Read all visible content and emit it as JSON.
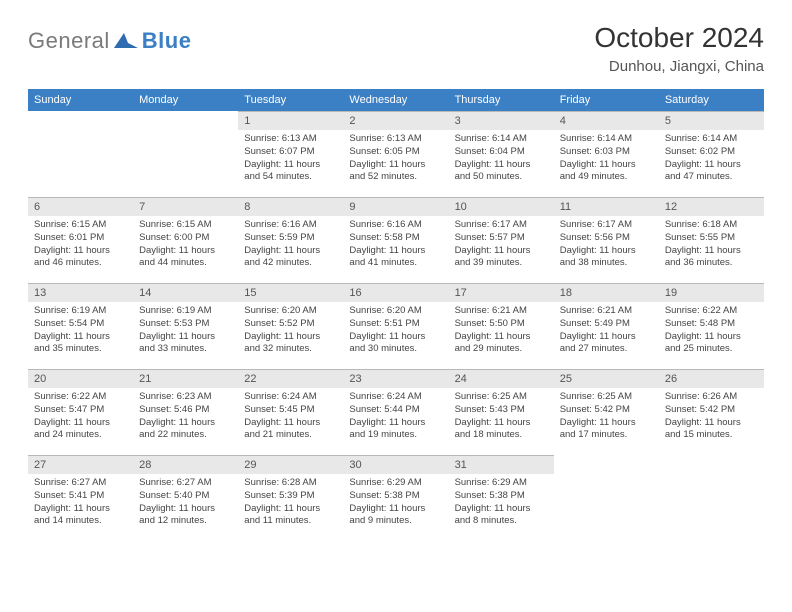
{
  "logo": {
    "word1": "General",
    "word2": "Blue"
  },
  "header": {
    "title": "October 2024",
    "location": "Dunhou, Jiangxi, China"
  },
  "colors": {
    "header_bg": "#3b7fc4",
    "daynum_bg": "#e8e8e8",
    "border": "#b8b8b8"
  },
  "days_of_week": [
    "Sunday",
    "Monday",
    "Tuesday",
    "Wednesday",
    "Thursday",
    "Friday",
    "Saturday"
  ],
  "weeks": [
    [
      null,
      null,
      {
        "n": "1",
        "sr": "Sunrise: 6:13 AM",
        "ss": "Sunset: 6:07 PM",
        "d1": "Daylight: 11 hours",
        "d2": "and 54 minutes."
      },
      {
        "n": "2",
        "sr": "Sunrise: 6:13 AM",
        "ss": "Sunset: 6:05 PM",
        "d1": "Daylight: 11 hours",
        "d2": "and 52 minutes."
      },
      {
        "n": "3",
        "sr": "Sunrise: 6:14 AM",
        "ss": "Sunset: 6:04 PM",
        "d1": "Daylight: 11 hours",
        "d2": "and 50 minutes."
      },
      {
        "n": "4",
        "sr": "Sunrise: 6:14 AM",
        "ss": "Sunset: 6:03 PM",
        "d1": "Daylight: 11 hours",
        "d2": "and 49 minutes."
      },
      {
        "n": "5",
        "sr": "Sunrise: 6:14 AM",
        "ss": "Sunset: 6:02 PM",
        "d1": "Daylight: 11 hours",
        "d2": "and 47 minutes."
      }
    ],
    [
      {
        "n": "6",
        "sr": "Sunrise: 6:15 AM",
        "ss": "Sunset: 6:01 PM",
        "d1": "Daylight: 11 hours",
        "d2": "and 46 minutes."
      },
      {
        "n": "7",
        "sr": "Sunrise: 6:15 AM",
        "ss": "Sunset: 6:00 PM",
        "d1": "Daylight: 11 hours",
        "d2": "and 44 minutes."
      },
      {
        "n": "8",
        "sr": "Sunrise: 6:16 AM",
        "ss": "Sunset: 5:59 PM",
        "d1": "Daylight: 11 hours",
        "d2": "and 42 minutes."
      },
      {
        "n": "9",
        "sr": "Sunrise: 6:16 AM",
        "ss": "Sunset: 5:58 PM",
        "d1": "Daylight: 11 hours",
        "d2": "and 41 minutes."
      },
      {
        "n": "10",
        "sr": "Sunrise: 6:17 AM",
        "ss": "Sunset: 5:57 PM",
        "d1": "Daylight: 11 hours",
        "d2": "and 39 minutes."
      },
      {
        "n": "11",
        "sr": "Sunrise: 6:17 AM",
        "ss": "Sunset: 5:56 PM",
        "d1": "Daylight: 11 hours",
        "d2": "and 38 minutes."
      },
      {
        "n": "12",
        "sr": "Sunrise: 6:18 AM",
        "ss": "Sunset: 5:55 PM",
        "d1": "Daylight: 11 hours",
        "d2": "and 36 minutes."
      }
    ],
    [
      {
        "n": "13",
        "sr": "Sunrise: 6:19 AM",
        "ss": "Sunset: 5:54 PM",
        "d1": "Daylight: 11 hours",
        "d2": "and 35 minutes."
      },
      {
        "n": "14",
        "sr": "Sunrise: 6:19 AM",
        "ss": "Sunset: 5:53 PM",
        "d1": "Daylight: 11 hours",
        "d2": "and 33 minutes."
      },
      {
        "n": "15",
        "sr": "Sunrise: 6:20 AM",
        "ss": "Sunset: 5:52 PM",
        "d1": "Daylight: 11 hours",
        "d2": "and 32 minutes."
      },
      {
        "n": "16",
        "sr": "Sunrise: 6:20 AM",
        "ss": "Sunset: 5:51 PM",
        "d1": "Daylight: 11 hours",
        "d2": "and 30 minutes."
      },
      {
        "n": "17",
        "sr": "Sunrise: 6:21 AM",
        "ss": "Sunset: 5:50 PM",
        "d1": "Daylight: 11 hours",
        "d2": "and 29 minutes."
      },
      {
        "n": "18",
        "sr": "Sunrise: 6:21 AM",
        "ss": "Sunset: 5:49 PM",
        "d1": "Daylight: 11 hours",
        "d2": "and 27 minutes."
      },
      {
        "n": "19",
        "sr": "Sunrise: 6:22 AM",
        "ss": "Sunset: 5:48 PM",
        "d1": "Daylight: 11 hours",
        "d2": "and 25 minutes."
      }
    ],
    [
      {
        "n": "20",
        "sr": "Sunrise: 6:22 AM",
        "ss": "Sunset: 5:47 PM",
        "d1": "Daylight: 11 hours",
        "d2": "and 24 minutes."
      },
      {
        "n": "21",
        "sr": "Sunrise: 6:23 AM",
        "ss": "Sunset: 5:46 PM",
        "d1": "Daylight: 11 hours",
        "d2": "and 22 minutes."
      },
      {
        "n": "22",
        "sr": "Sunrise: 6:24 AM",
        "ss": "Sunset: 5:45 PM",
        "d1": "Daylight: 11 hours",
        "d2": "and 21 minutes."
      },
      {
        "n": "23",
        "sr": "Sunrise: 6:24 AM",
        "ss": "Sunset: 5:44 PM",
        "d1": "Daylight: 11 hours",
        "d2": "and 19 minutes."
      },
      {
        "n": "24",
        "sr": "Sunrise: 6:25 AM",
        "ss": "Sunset: 5:43 PM",
        "d1": "Daylight: 11 hours",
        "d2": "and 18 minutes."
      },
      {
        "n": "25",
        "sr": "Sunrise: 6:25 AM",
        "ss": "Sunset: 5:42 PM",
        "d1": "Daylight: 11 hours",
        "d2": "and 17 minutes."
      },
      {
        "n": "26",
        "sr": "Sunrise: 6:26 AM",
        "ss": "Sunset: 5:42 PM",
        "d1": "Daylight: 11 hours",
        "d2": "and 15 minutes."
      }
    ],
    [
      {
        "n": "27",
        "sr": "Sunrise: 6:27 AM",
        "ss": "Sunset: 5:41 PM",
        "d1": "Daylight: 11 hours",
        "d2": "and 14 minutes."
      },
      {
        "n": "28",
        "sr": "Sunrise: 6:27 AM",
        "ss": "Sunset: 5:40 PM",
        "d1": "Daylight: 11 hours",
        "d2": "and 12 minutes."
      },
      {
        "n": "29",
        "sr": "Sunrise: 6:28 AM",
        "ss": "Sunset: 5:39 PM",
        "d1": "Daylight: 11 hours",
        "d2": "and 11 minutes."
      },
      {
        "n": "30",
        "sr": "Sunrise: 6:29 AM",
        "ss": "Sunset: 5:38 PM",
        "d1": "Daylight: 11 hours",
        "d2": "and 9 minutes."
      },
      {
        "n": "31",
        "sr": "Sunrise: 6:29 AM",
        "ss": "Sunset: 5:38 PM",
        "d1": "Daylight: 11 hours",
        "d2": "and 8 minutes."
      },
      null,
      null
    ]
  ]
}
